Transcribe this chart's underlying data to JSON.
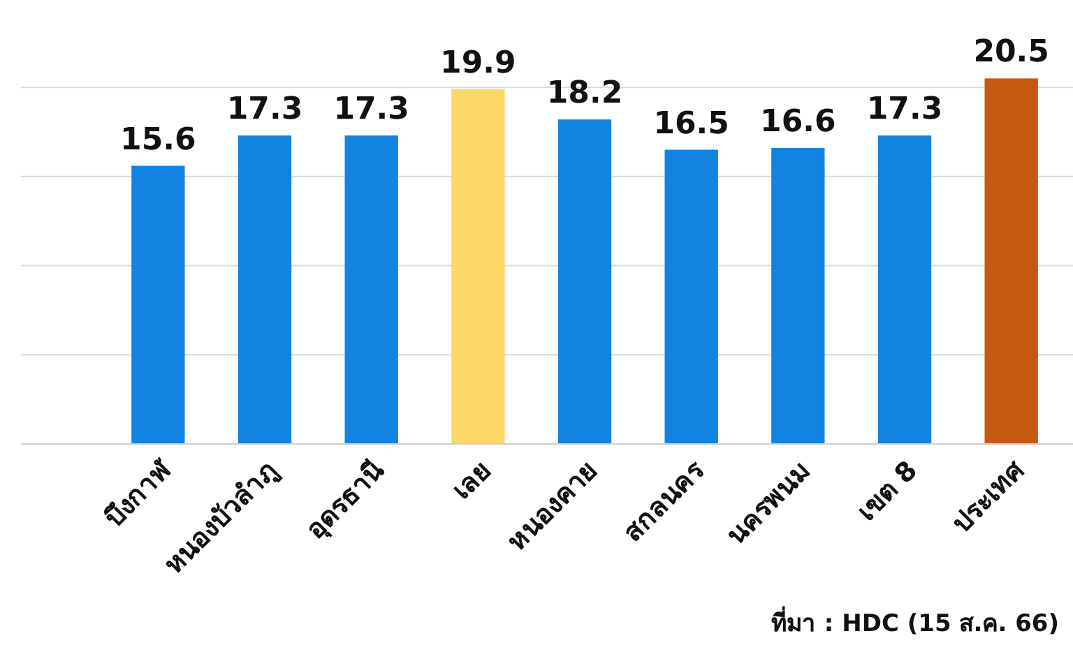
{
  "chart_data": {
    "type": "bar",
    "categories": [
      "บึงกาฬ",
      "หนองบัวลำภู",
      "อุดรธานี",
      "เลย",
      "หนองคาย",
      "สกลนคร",
      "นครพนม",
      "เขต 8",
      "ประเทศ"
    ],
    "values": [
      15.6,
      17.3,
      17.3,
      19.9,
      18.2,
      16.5,
      16.6,
      17.3,
      20.5
    ],
    "colors": [
      "#1283e0",
      "#1283e0",
      "#1283e0",
      "#fcd666",
      "#1283e0",
      "#1283e0",
      "#1283e0",
      "#1283e0",
      "#c45a12"
    ],
    "yticks": [
      {
        "value": 0,
        "label": null
      },
      {
        "value": 5,
        "label": null
      },
      {
        "value": 10,
        "label": null
      },
      {
        "value": 15,
        "label": null
      },
      {
        "value": 20,
        "label": null
      }
    ],
    "grid": "y",
    "data_labels": true,
    "annotations": [
      "ที่มา : HDC (15 ส.ค. 66)"
    ]
  }
}
